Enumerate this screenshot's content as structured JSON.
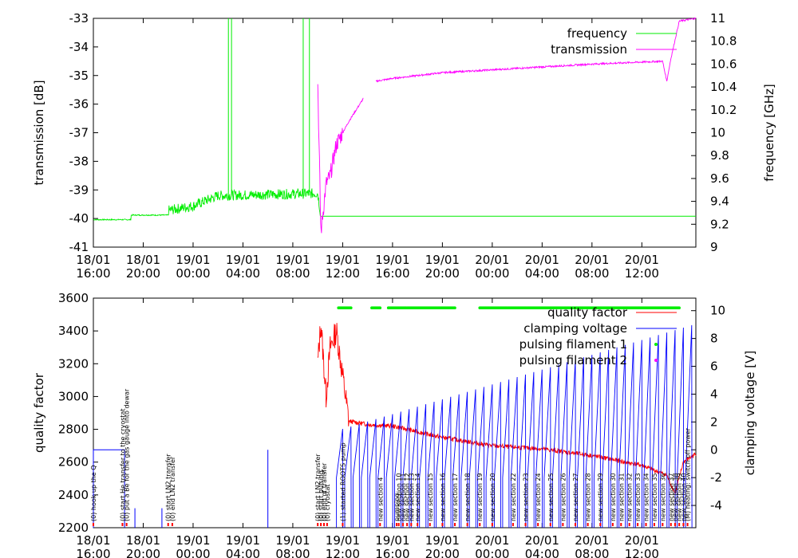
{
  "chart_data": [
    {
      "type": "line",
      "time_ticks": [
        "18/01 16:00",
        "18/01 20:00",
        "19/01 00:00",
        "19/01 04:00",
        "19/01 08:00",
        "19/01 12:00",
        "19/01 16:00",
        "19/01 20:00",
        "20/01 00:00",
        "20/01 04:00",
        "20/01 08:00",
        "20/01 12:00"
      ],
      "xlim": [
        "18/01 16:00",
        "20/01 16:20"
      ],
      "y_left": {
        "label": "transmission [dB]",
        "lim": [
          -41,
          -33
        ],
        "ticks": [
          "-33",
          "-34",
          "-35",
          "-36",
          "-37",
          "-38",
          "-39",
          "-40",
          "-41"
        ]
      },
      "y_right": {
        "label": "frequency [GHz]",
        "lim": [
          9,
          11
        ],
        "ticks": [
          "11",
          "10.8",
          "10.6",
          "10.4",
          "10.2",
          "10",
          "9.8",
          "9.6",
          "9.4",
          "9.2",
          "9"
        ]
      },
      "legend": "top-right",
      "series": [
        {
          "name": "frequency",
          "axis": "right",
          "color": "#00ee00",
          "points": [
            [
              "18/01 16:00",
              9.24
            ],
            [
              "18/01 19:00",
              9.24
            ],
            [
              "18/01 19:00",
              9.28
            ],
            [
              "18/01 22:00",
              9.28
            ],
            [
              "18/01 22:00",
              9.32
            ],
            [
              "19/01 00:00",
              9.36
            ],
            [
              "19/01 02:00",
              9.45
            ],
            [
              "19/01 06:00",
              9.46
            ],
            [
              "19/01 10:00",
              9.47
            ],
            [
              "19/01 10:15",
              9.27
            ],
            [
              "20/01 16:20",
              9.27
            ]
          ]
        },
        {
          "name": "transmission",
          "axis": "left",
          "color": "#ff00ff",
          "points": [
            [
              "19/01 10:00",
              -35.2
            ],
            [
              "19/01 10:15",
              -40.5
            ],
            [
              "19/01 10:40",
              -38.8
            ],
            [
              "19/01 11:00",
              -38.5
            ],
            [
              "19/01 11:30",
              -37.4
            ],
            [
              "19/01 12:30",
              -36.6
            ],
            [
              "19/01 13:40",
              -35.8
            ],
            [
              "19/01 14:40",
              -35.2
            ],
            [
              "19/01 16:00",
              -35.1
            ],
            [
              "19/01 20:00",
              -34.9
            ],
            [
              "20/01 00:00",
              -34.8
            ],
            [
              "20/01 04:00",
              -34.7
            ],
            [
              "20/01 08:00",
              -34.6
            ],
            [
              "20/01 13:40",
              -34.5
            ],
            [
              "20/01 14:00",
              -35.2
            ],
            [
              "20/01 14:20",
              -34.4
            ],
            [
              "20/01 15:00",
              -33.1
            ],
            [
              "20/01 16:20",
              -33.0
            ]
          ]
        }
      ]
    },
    {
      "type": "line",
      "time_ticks": [
        "18/01 16:00",
        "18/01 20:00",
        "19/01 00:00",
        "19/01 04:00",
        "19/01 08:00",
        "19/01 12:00",
        "19/01 16:00",
        "19/01 20:00",
        "20/01 00:00",
        "20/01 04:00",
        "20/01 08:00",
        "20/01 12:00"
      ],
      "xlim": [
        "18/01 16:00",
        "20/01 16:20"
      ],
      "y_left": {
        "label": "quality factor",
        "lim": [
          2200,
          3600
        ],
        "ticks": [
          "3600",
          "3400",
          "3200",
          "3000",
          "2800",
          "2600",
          "2400",
          "2200"
        ]
      },
      "y_right": {
        "label": "clamping voltage [V]",
        "ticks": [
          "10",
          "8",
          "6",
          "4",
          "2",
          "0",
          "-2",
          "-4"
        ]
      },
      "legend": "top-right",
      "series": [
        {
          "name": "quality factor",
          "axis": "left",
          "color": "#ff0000",
          "points": [
            [
              "19/01 10:00",
              3200
            ],
            [
              "19/01 10:15",
              3450
            ],
            [
              "19/01 10:40",
              3000
            ],
            [
              "19/01 11:00",
              3300
            ],
            [
              "19/01 11:30",
              3400
            ],
            [
              "19/01 12:30",
              2850
            ],
            [
              "19/01 14:00",
              2830
            ],
            [
              "19/01 16:00",
              2820
            ],
            [
              "19/01 20:00",
              2750
            ],
            [
              "20/01 00:00",
              2700
            ],
            [
              "20/01 04:00",
              2680
            ],
            [
              "20/01 08:00",
              2640
            ],
            [
              "20/01 12:00",
              2580
            ],
            [
              "20/01 14:00",
              2520
            ],
            [
              "20/01 14:40",
              2410
            ],
            [
              "20/01 15:20",
              2600
            ],
            [
              "20/01 16:20",
              2650
            ]
          ]
        },
        {
          "name": "clamping voltage",
          "axis": "right",
          "color": "#0000ff",
          "points": [
            [
              "18/01 16:00",
              0
            ],
            [
              "18/01 18:30",
              0
            ],
            [
              "19/01 12:00",
              1.5
            ],
            [
              "19/01 13:00",
              2.0
            ]
          ]
        },
        {
          "name": "pulsing filament 1",
          "axis": "right",
          "color": "#00ee00",
          "points": [
            [
              "19/01 11:40",
              10.2
            ],
            [
              "19/01 12:40",
              10.2
            ],
            [
              "19/01 14:20",
              10.2
            ],
            [
              "19/01 15:00",
              10.2
            ],
            [
              "19/01 15:40",
              10.2
            ],
            [
              "19/01 21:00",
              10.2
            ],
            [
              "19/01 23:00",
              10.2
            ],
            [
              "20/01 15:00",
              10.2
            ]
          ]
        },
        {
          "name": "pulsing filament 2",
          "axis": "right",
          "color": "#ff00ff",
          "points": []
        }
      ],
      "annotations": [
        {
          "t": "18/01 16:00",
          "text": "(0) hook up the Q"
        },
        {
          "t": "18/01 18:20",
          "text": "(0) start He transfer to the cryostat"
        },
        {
          "t": "18/01 18:40",
          "text": "(0) put a Be for the gas gauge into dewar"
        },
        {
          "t": "18/01 22:00",
          "text": "(0) start LN2 transfer"
        },
        {
          "t": "18/01 22:20",
          "text": "(0) end LN2 transfer"
        },
        {
          "t": "19/01 10:00",
          "text": "(0) start LN2 transfer"
        },
        {
          "t": "19/01 10:15",
          "text": "(0) start pulsing"
        },
        {
          "t": "19/01 10:30",
          "text": "(0) end of transfer"
        },
        {
          "t": "19/01 10:45",
          "text": "(0) cryostat"
        },
        {
          "t": "19/01 12:00",
          "text": "(1) started ROOTS pump"
        },
        {
          "t": "19/01 15:00",
          "text": "new section 4"
        },
        {
          "t": "19/01 16:20",
          "text": "pumping"
        },
        {
          "t": "19/01 16:30",
          "text": "new section 10"
        },
        {
          "t": "19/01 16:50",
          "text": "new section 11"
        },
        {
          "t": "19/01 17:10",
          "text": "new section 12"
        },
        {
          "t": "19/01 17:30",
          "text": "new section 13"
        },
        {
          "t": "19/01 18:00",
          "text": "new section 14"
        },
        {
          "t": "19/01 19:00",
          "text": "new section 15"
        },
        {
          "t": "19/01 20:00",
          "text": "new section 16"
        },
        {
          "t": "19/01 21:00",
          "text": "new section 17"
        },
        {
          "t": "19/01 22:00",
          "text": "new section 18"
        },
        {
          "t": "19/01 23:00",
          "text": "new section 19"
        },
        {
          "t": "20/01 00:00",
          "text": "new section 20"
        },
        {
          "t": "20/01 01:40",
          "text": "new section 22"
        },
        {
          "t": "20/01 02:40",
          "text": "new section 23"
        },
        {
          "t": "20/01 03:40",
          "text": "new section 24"
        },
        {
          "t": "20/01 04:40",
          "text": "new section 25"
        },
        {
          "t": "20/01 05:40",
          "text": "new section 26"
        },
        {
          "t": "20/01 06:40",
          "text": "new section 27"
        },
        {
          "t": "20/01 07:40",
          "text": "new section 28"
        },
        {
          "t": "20/01 08:40",
          "text": "new section 29"
        },
        {
          "t": "20/01 09:40",
          "text": "new section 30"
        },
        {
          "t": "20/01 10:20",
          "text": "new section 31"
        },
        {
          "t": "20/01 11:00",
          "text": "new section 32"
        },
        {
          "t": "20/01 11:40",
          "text": "new section 33"
        },
        {
          "t": "20/01 12:20",
          "text": "new section 34"
        },
        {
          "t": "20/01 13:00",
          "text": "new section 35"
        },
        {
          "t": "20/01 13:40",
          "text": "new section 36"
        },
        {
          "t": "20/01 14:20",
          "text": "new section 37"
        },
        {
          "t": "20/01 14:40",
          "text": "new section 38"
        },
        {
          "t": "20/01 15:00",
          "text": "new section 39"
        },
        {
          "t": "20/01 15:20",
          "text": "new section 40"
        },
        {
          "t": "20/01 15:40",
          "text": "(M) heating: switch off power"
        }
      ]
    }
  ]
}
